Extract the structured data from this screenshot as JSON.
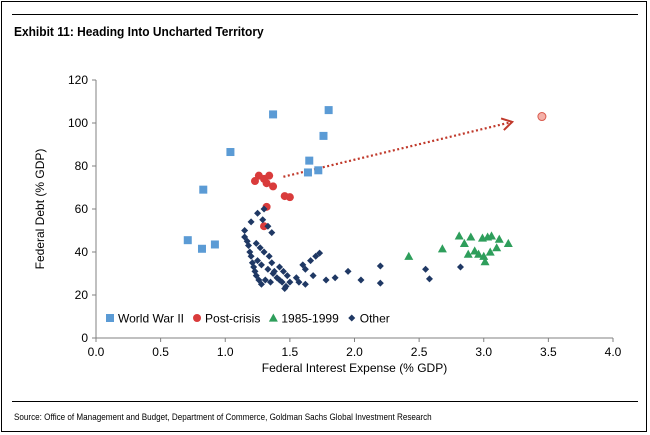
{
  "header": {
    "title": "Exhibit 11: Heading Into Uncharted Territory"
  },
  "footer": {
    "source": "Source: Office of Management and Budget, Department of Commerce, Goldman Sachs Global Investment Research"
  },
  "chart_data": {
    "type": "scatter",
    "title": "Exhibit 11: Heading Into Uncharted Territory",
    "xlabel": "Federal Interest Expense (% GDP)",
    "ylabel": "Federal  Debt (% GDP)",
    "xlim": [
      0,
      4.0
    ],
    "ylim": [
      0,
      120
    ],
    "xticks": [
      "0.0",
      "0.5",
      "1.0",
      "1.5",
      "2.0",
      "2.5",
      "3.0",
      "3.5",
      "4.0"
    ],
    "yticks": [
      "0",
      "20",
      "40",
      "60",
      "80",
      "100",
      "120"
    ],
    "legend_position": "bottom-left",
    "series": [
      {
        "name": "World War II",
        "marker": "square",
        "color": "#5b9bd5",
        "points": [
          [
            0.71,
            45.5
          ],
          [
            0.82,
            41.5
          ],
          [
            0.83,
            69
          ],
          [
            0.92,
            43.5
          ],
          [
            1.04,
            86.5
          ],
          [
            1.37,
            104
          ],
          [
            1.64,
            77
          ],
          [
            1.65,
            82.5
          ],
          [
            1.72,
            78
          ],
          [
            1.76,
            94
          ],
          [
            1.8,
            106
          ]
        ]
      },
      {
        "name": "Post-crisis",
        "marker": "circle",
        "color": "#d93b3b",
        "points": [
          [
            1.23,
            73
          ],
          [
            1.26,
            75.5
          ],
          [
            1.3,
            74
          ],
          [
            1.32,
            72
          ],
          [
            1.34,
            75.5
          ],
          [
            1.37,
            70.5
          ],
          [
            1.46,
            66
          ],
          [
            1.5,
            65.5
          ],
          [
            1.3,
            52
          ],
          [
            1.32,
            61
          ]
        ]
      },
      {
        "name": "1985-1999",
        "marker": "triangle",
        "color": "#2e9e5b",
        "points": [
          [
            2.42,
            38
          ],
          [
            2.68,
            41.5
          ],
          [
            2.81,
            47.5
          ],
          [
            2.85,
            44
          ],
          [
            2.88,
            39
          ],
          [
            2.9,
            47
          ],
          [
            2.93,
            40.5
          ],
          [
            2.96,
            39
          ],
          [
            2.99,
            46.5
          ],
          [
            3.0,
            38
          ],
          [
            3.01,
            35.5
          ],
          [
            3.03,
            47
          ],
          [
            3.05,
            40
          ],
          [
            3.06,
            47.5
          ],
          [
            3.1,
            42
          ],
          [
            3.12,
            46
          ],
          [
            3.19,
            44
          ]
        ]
      },
      {
        "name": "Other",
        "marker": "diamond",
        "color": "#1f3864",
        "points": [
          [
            1.15,
            50
          ],
          [
            1.15,
            47
          ],
          [
            1.17,
            45
          ],
          [
            1.18,
            43
          ],
          [
            1.19,
            40
          ],
          [
            1.2,
            38
          ],
          [
            1.21,
            35
          ],
          [
            1.22,
            33
          ],
          [
            1.23,
            31
          ],
          [
            1.24,
            29
          ],
          [
            1.26,
            27
          ],
          [
            1.28,
            25
          ],
          [
            1.2,
            54
          ],
          [
            1.25,
            58
          ],
          [
            1.29,
            55
          ],
          [
            1.33,
            52
          ],
          [
            1.3,
            60
          ],
          [
            1.36,
            49
          ],
          [
            1.24,
            44
          ],
          [
            1.27,
            42
          ],
          [
            1.3,
            40
          ],
          [
            1.34,
            38
          ],
          [
            1.25,
            36
          ],
          [
            1.28,
            34
          ],
          [
            1.33,
            32
          ],
          [
            1.37,
            30
          ],
          [
            1.4,
            28
          ],
          [
            1.36,
            35
          ],
          [
            1.42,
            33
          ],
          [
            1.45,
            31
          ],
          [
            1.48,
            29
          ],
          [
            1.31,
            27
          ],
          [
            1.35,
            26
          ],
          [
            1.44,
            26
          ],
          [
            1.47,
            24
          ],
          [
            1.5,
            26
          ],
          [
            1.55,
            28
          ],
          [
            1.6,
            34
          ],
          [
            1.62,
            32
          ],
          [
            1.66,
            36
          ],
          [
            1.68,
            29
          ],
          [
            1.7,
            38
          ],
          [
            1.73,
            39.5
          ],
          [
            1.42,
            27
          ],
          [
            1.46,
            23
          ],
          [
            1.57,
            26
          ],
          [
            1.78,
            27
          ],
          [
            1.85,
            28
          ],
          [
            1.95,
            31
          ],
          [
            2.2,
            33.5
          ],
          [
            2.2,
            25.5
          ],
          [
            2.55,
            32
          ],
          [
            2.58,
            27.5
          ],
          [
            2.82,
            33
          ],
          [
            2.05,
            27
          ],
          [
            1.62,
            25
          ],
          [
            1.38,
            31
          ]
        ]
      }
    ],
    "annotations": [
      {
        "type": "point",
        "label": "",
        "marker": "circle",
        "color": "#f4b0a8",
        "x": 3.45,
        "y": 103
      },
      {
        "type": "arrow",
        "style": "dotted",
        "color": "#c0392b",
        "from": [
          1.45,
          75
        ],
        "to": [
          3.22,
          100.5
        ]
      }
    ]
  }
}
